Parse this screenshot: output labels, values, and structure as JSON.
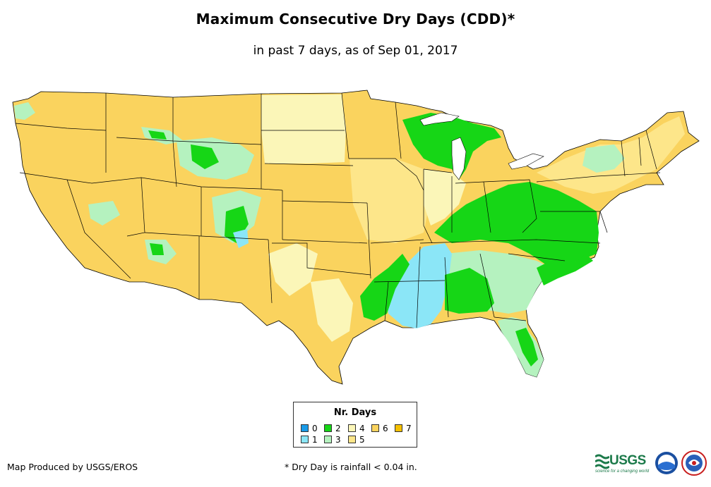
{
  "title": "Maximum Consecutive Dry Days (CDD)*",
  "subtitle": "in past 7 days, as of Sep 01, 2017",
  "legend": {
    "title": "Nr. Days",
    "items": [
      {
        "label": "0",
        "color": "#1a9be8"
      },
      {
        "label": "1",
        "color": "#8be6f7"
      },
      {
        "label": "2",
        "color": "#16d616"
      },
      {
        "label": "3",
        "color": "#b5f2bf"
      },
      {
        "label": "4",
        "color": "#fbf6b8"
      },
      {
        "label": "5",
        "color": "#fde68a"
      },
      {
        "label": "6",
        "color": "#fad35e"
      },
      {
        "label": "7",
        "color": "#f5c000"
      }
    ]
  },
  "credit": "Map Produced by USGS/EROS",
  "footnote": "* Dry Day is rainfall < 0.04 in.",
  "logos": {
    "usgs": "USGS",
    "usgs_tagline": "science for a changing world",
    "icons": [
      "usgs-logo-icon",
      "noaa-logo-icon",
      "nws-logo-icon"
    ]
  }
}
